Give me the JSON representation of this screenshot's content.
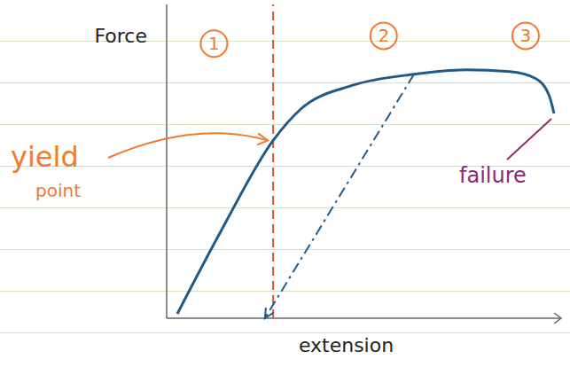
{
  "chart_data": {
    "type": "line",
    "x_label": "extension",
    "y_label": "Force",
    "xlim": [
      0,
      10
    ],
    "ylim": [
      0,
      12
    ],
    "tick_labels": false,
    "grid": false,
    "series": [
      {
        "color": "#1f5a8a",
        "line_style": "solid",
        "marker": "none",
        "x": [
          0.27,
          1.4,
          2.7,
          3.4,
          4.7,
          6.27,
          7.6,
          8.7,
          9.35,
          9.7,
          9.82
        ],
        "values": [
          0.17,
          3.4,
          6.8,
          8.0,
          8.9,
          9.33,
          9.5,
          9.43,
          9.17,
          8.5,
          7.83
        ]
      },
      {
        "color": "#1f5a8a",
        "line_style": "dashdot",
        "marker": "arrow",
        "x": [
          6.27,
          2.49
        ],
        "values": [
          9.33,
          0
        ]
      }
    ],
    "reference_lines": [
      {
        "x": 2.7,
        "color": "#e8502a",
        "line_style": "dashed"
      }
    ],
    "annotations": [
      {
        "text": "yield point",
        "x": 2.7,
        "y": 6.8,
        "color": "#f07a30"
      },
      {
        "text": "failure",
        "x": 9.82,
        "y": 7.83,
        "color": "#8e2a6e"
      }
    ],
    "regions": [
      {
        "label": "1",
        "x": 1.2,
        "y": 10.5,
        "color": "#f07a30"
      },
      {
        "label": "2",
        "x": 5.5,
        "y": 10.8,
        "color": "#f07a30"
      },
      {
        "label": "3",
        "x": 9.1,
        "y": 10.8,
        "color": "#f07a30"
      }
    ]
  }
}
